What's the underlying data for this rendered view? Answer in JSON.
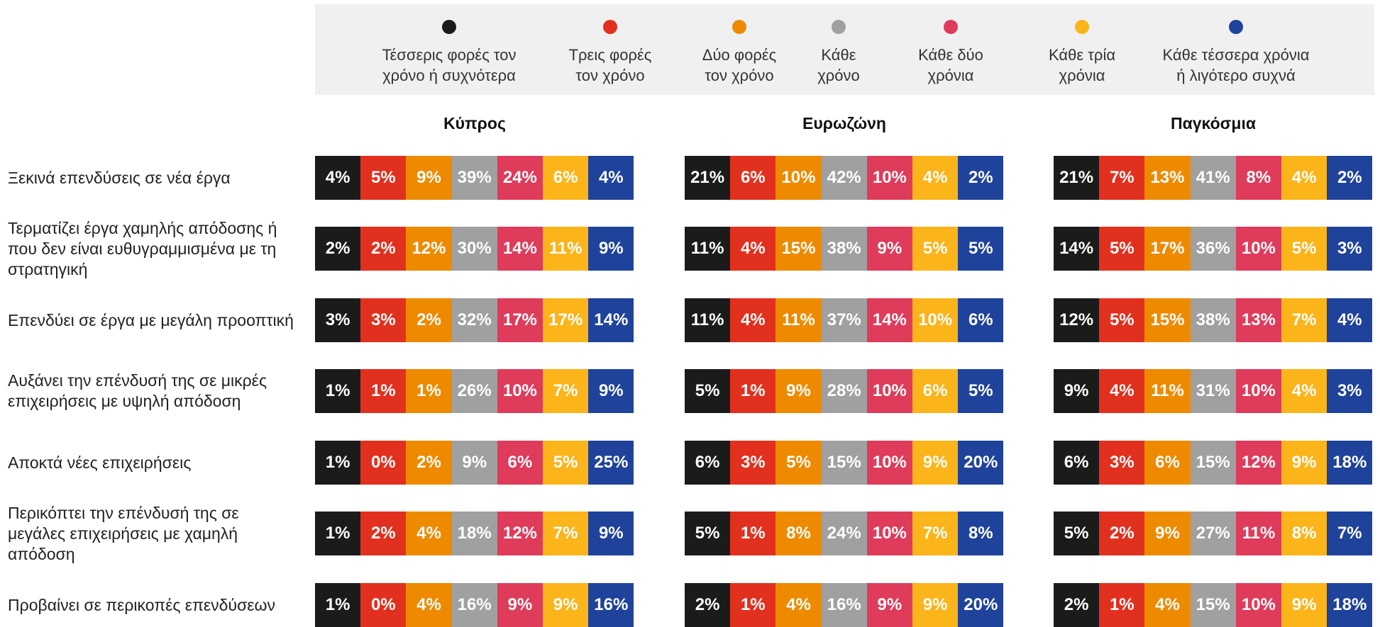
{
  "legend": [
    {
      "label_lines": [
        "Τέσσερις φορές τον",
        "χρόνο ή συχνότερα"
      ],
      "color": "#1b1b1b"
    },
    {
      "label_lines": [
        "Τρεις φορές",
        "τον χρόνο"
      ],
      "color": "#e2301f"
    },
    {
      "label_lines": [
        "Δύο φορές",
        "τον χρόνο"
      ],
      "color": "#ee8a00"
    },
    {
      "label_lines": [
        "Κάθε",
        "χρόνο"
      ],
      "color": "#a0a0a0"
    },
    {
      "label_lines": [
        "Κάθε δύο",
        "χρόνια"
      ],
      "color": "#df3b5b"
    },
    {
      "label_lines": [
        "Κάθε τρία",
        "χρόνια"
      ],
      "color": "#fbb41a"
    },
    {
      "label_lines": [
        "Κάθε τέσσερα χρόνια",
        "ή λιγότερο συχνά"
      ],
      "color": "#1f439b"
    }
  ],
  "rows": [
    "Ξεκινά επενδύσεις σε νέα έργα",
    "Τερματίζει έργα χαμηλής απόδοσης ή που δεν είναι ευθυγραμμισμένα με τη στρατηγική",
    "Επενδύει σε έργα με μεγάλη προοπτική",
    "Αυξάνει την επένδυσή της σε μικρές επιχειρήσεις με υψηλή απόδοση",
    "Αποκτά νέες επιχειρήσεις",
    "Περικόπτει την επένδυσή της σε μεγάλες επιχειρήσεις με χαμηλή απόδοση",
    "Προβαίνει σε περικοπές επενδύσεων"
  ],
  "groups": [
    {
      "name": "Κύπρος",
      "values": [
        [
          "4%",
          "5%",
          "9%",
          "39%",
          "24%",
          "6%",
          "4%"
        ],
        [
          "2%",
          "2%",
          "12%",
          "30%",
          "14%",
          "11%",
          "9%"
        ],
        [
          "3%",
          "3%",
          "2%",
          "32%",
          "17%",
          "17%",
          "14%"
        ],
        [
          "1%",
          "1%",
          "1%",
          "26%",
          "10%",
          "7%",
          "9%"
        ],
        [
          "1%",
          "0%",
          "2%",
          "9%",
          "6%",
          "5%",
          "25%"
        ],
        [
          "1%",
          "2%",
          "4%",
          "18%",
          "12%",
          "7%",
          "9%"
        ],
        [
          "1%",
          "0%",
          "4%",
          "16%",
          "9%",
          "9%",
          "16%"
        ]
      ]
    },
    {
      "name": "Ευρωζώνη",
      "values": [
        [
          "21%",
          "6%",
          "10%",
          "42%",
          "10%",
          "4%",
          "2%"
        ],
        [
          "11%",
          "4%",
          "15%",
          "38%",
          "9%",
          "5%",
          "5%"
        ],
        [
          "11%",
          "4%",
          "11%",
          "37%",
          "14%",
          "10%",
          "6%"
        ],
        [
          "5%",
          "1%",
          "9%",
          "28%",
          "10%",
          "6%",
          "5%"
        ],
        [
          "6%",
          "3%",
          "5%",
          "15%",
          "10%",
          "9%",
          "20%"
        ],
        [
          "5%",
          "1%",
          "8%",
          "24%",
          "10%",
          "7%",
          "8%"
        ],
        [
          "2%",
          "1%",
          "4%",
          "16%",
          "9%",
          "9%",
          "20%"
        ]
      ]
    },
    {
      "name": "Παγκόσμια",
      "values": [
        [
          "21%",
          "7%",
          "13%",
          "41%",
          "8%",
          "4%",
          "2%"
        ],
        [
          "14%",
          "5%",
          "17%",
          "36%",
          "10%",
          "5%",
          "3%"
        ],
        [
          "12%",
          "5%",
          "15%",
          "38%",
          "13%",
          "7%",
          "4%"
        ],
        [
          "9%",
          "4%",
          "11%",
          "31%",
          "10%",
          "4%",
          "3%"
        ],
        [
          "6%",
          "3%",
          "6%",
          "15%",
          "12%",
          "9%",
          "18%"
        ],
        [
          "5%",
          "2%",
          "9%",
          "27%",
          "11%",
          "8%",
          "7%"
        ],
        [
          "2%",
          "1%",
          "4%",
          "15%",
          "10%",
          "9%",
          "18%"
        ]
      ]
    }
  ]
}
